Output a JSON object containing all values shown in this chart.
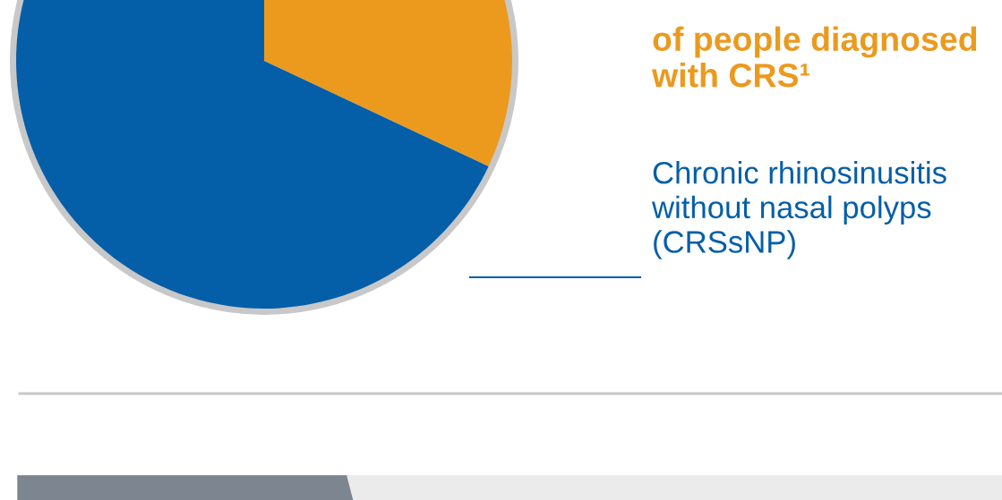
{
  "chart_data": {
    "type": "pie",
    "categories": [
      null,
      "Chronic rhinosinusitis\nwithout nasal polyps\n(CRSsNP)"
    ],
    "values": [
      32,
      68
    ],
    "colors": [
      "#eb9a1e",
      "#045ea8"
    ],
    "annotations": [
      "of people diagnosed\nwith CRS¹"
    ]
  }
}
